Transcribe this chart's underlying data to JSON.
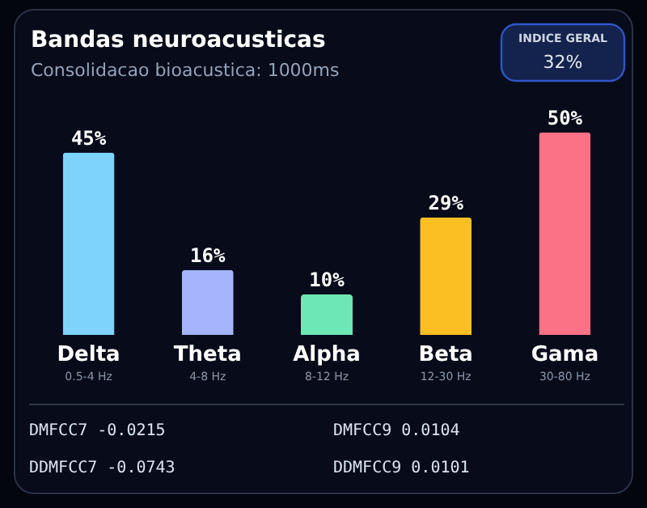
{
  "chart_data": {
    "type": "bar",
    "title": "Bandas neuroacusticas",
    "subtitle": "Consolidacao bioacustica: 1000ms",
    "categories": [
      "Delta",
      "Theta",
      "Alpha",
      "Beta",
      "Gama"
    ],
    "values": [
      45,
      16,
      10,
      29,
      50
    ],
    "colors": [
      "#7dd3fc",
      "#a5b4fc",
      "#6ee7b7",
      "#fbbf24",
      "#fb7185"
    ],
    "value_labels": [
      "45%",
      "16%",
      "10%",
      "29%",
      "50%"
    ],
    "annotations": [
      "INDICE GERAL",
      "32%",
      "DMFCC7 -0.0215",
      "DMFCC9 0.0104",
      "DDMFCC7 -0.0743",
      "DDMFCC9 0.0101",
      "0.5-4 Hz",
      "4-8 Hz",
      "8-12 Hz",
      "12-30 Hz",
      "30-80 Hz"
    ]
  }
}
